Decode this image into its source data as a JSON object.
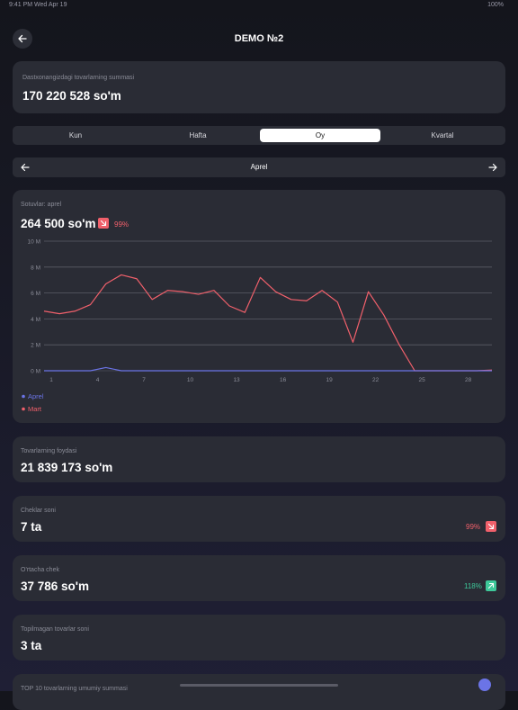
{
  "status_bar": {
    "left": "9:41 PM   Wed Apr 19",
    "right": "100%"
  },
  "header": {
    "title": "DEMO №2"
  },
  "stock_card": {
    "label": "Dastxonangizdagi tovarlarning summasi",
    "value": "170 220 528 so'm"
  },
  "tabs": [
    {
      "label": "Kun",
      "active": false
    },
    {
      "label": "Hafta",
      "active": false
    },
    {
      "label": "Oy",
      "active": true
    },
    {
      "label": "Kvartal",
      "active": false
    }
  ],
  "period": {
    "label": "Aprel"
  },
  "sales_card": {
    "label": "Sotuvlar: aprel",
    "value": "264 500 so'm",
    "change_percent": "99%",
    "change_direction": "down",
    "change_color": "#f0606b"
  },
  "chart_data": {
    "type": "line",
    "y_ticks": [
      "10 M",
      "8 M",
      "6 M",
      "4 M",
      "2 M",
      "0 M"
    ],
    "ylim": [
      0,
      10
    ],
    "x_ticks": [
      "1",
      "4",
      "7",
      "10",
      "13",
      "16",
      "19",
      "22",
      "25",
      "28"
    ],
    "x": [
      1,
      2,
      3,
      4,
      5,
      6,
      7,
      8,
      9,
      10,
      11,
      12,
      13,
      14,
      15,
      16,
      17,
      18,
      19,
      20,
      21,
      22,
      23,
      24,
      25,
      26,
      27,
      28,
      29,
      30
    ],
    "grid": true,
    "legend_placement": "bottom-left",
    "series": [
      {
        "name": "Aprel",
        "color": "#6b74e6",
        "values": [
          0,
          0,
          0,
          0,
          0.25,
          0,
          0,
          0,
          0,
          0,
          0,
          0,
          0,
          0,
          0,
          0,
          0,
          0,
          0,
          0,
          0,
          0,
          0,
          0,
          0,
          0,
          0,
          0,
          0,
          0
        ]
      },
      {
        "name": "Mart",
        "color": "#f0606b",
        "values": [
          4.6,
          4.4,
          4.6,
          5.1,
          6.7,
          7.4,
          7.1,
          5.5,
          6.2,
          6.1,
          5.9,
          6.2,
          5.0,
          4.5,
          7.2,
          6.1,
          5.5,
          5.4,
          6.2,
          5.3,
          2.2,
          6.1,
          4.3,
          2.0,
          0,
          0,
          0,
          0,
          0,
          0.05
        ]
      }
    ]
  },
  "profit_card": {
    "label": "Tovarlarning foydasi",
    "value": "21 839 173 so'm"
  },
  "checks_card": {
    "label": "Cheklar soni",
    "value": "7 ta",
    "change_percent": "99%",
    "change_direction": "down",
    "change_color": "#f0606b"
  },
  "avg_check_card": {
    "label": "O'rtacha chek",
    "value": "37 786 so'm",
    "change_percent": "118%",
    "change_direction": "up",
    "change_color": "#3ec99a"
  },
  "not_found_card": {
    "label": "Topilmagan tovarlar soni",
    "value": "3 ta"
  },
  "top10_card": {
    "label": "TOP 10 tovarlarning umumiy summasi"
  }
}
